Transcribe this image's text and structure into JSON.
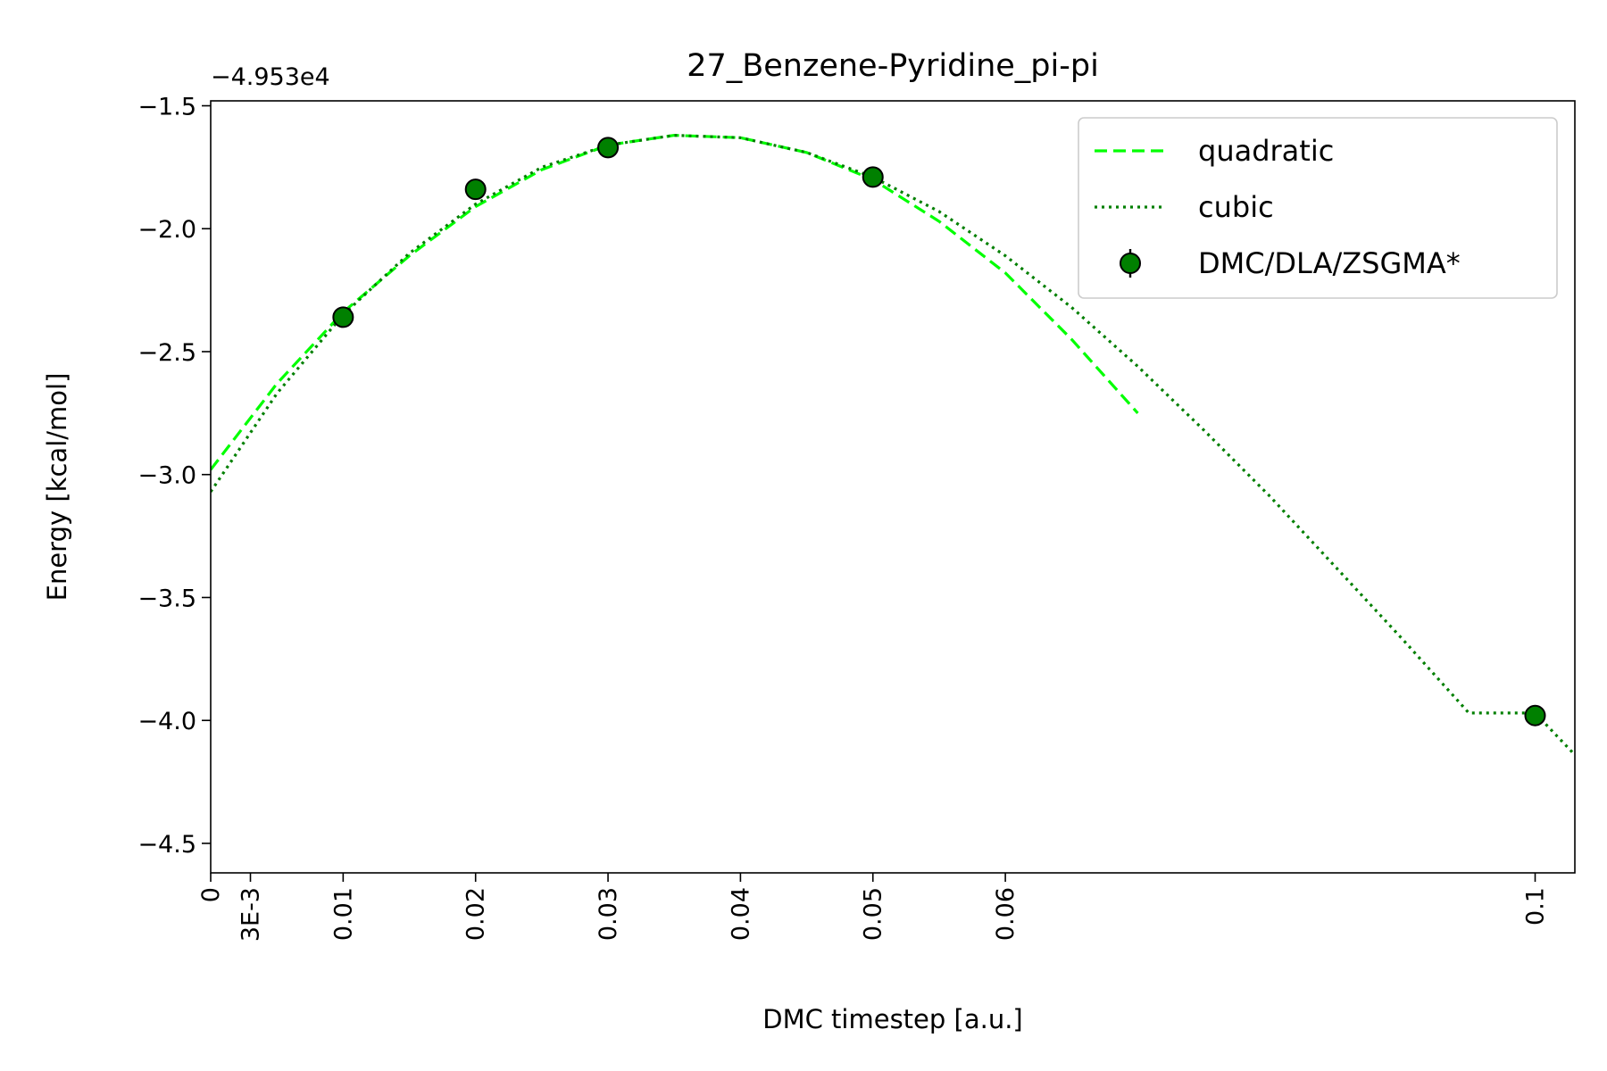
{
  "chart_data": {
    "type": "line",
    "title": "27_Benzene-Pyridine_pi-pi",
    "xlabel": "DMC timestep [a.u.]",
    "ylabel": "Energy [kcal/mol]",
    "offset_text": "−4.953e4",
    "xlim": [
      0,
      0.103
    ],
    "ylim": [
      -4.62,
      -1.48
    ],
    "x_ticks": [
      {
        "value": 0,
        "label": "0"
      },
      {
        "value": 0.003,
        "label": "3E-3"
      },
      {
        "value": 0.01,
        "label": "0.01"
      },
      {
        "value": 0.02,
        "label": "0.02"
      },
      {
        "value": 0.03,
        "label": "0.03"
      },
      {
        "value": 0.04,
        "label": "0.04"
      },
      {
        "value": 0.05,
        "label": "0.05"
      },
      {
        "value": 0.06,
        "label": "0.06"
      },
      {
        "value": 0.1,
        "label": "0.1"
      }
    ],
    "y_ticks": [
      {
        "value": -1.5,
        "label": "−1.5"
      },
      {
        "value": -2.0,
        "label": "−2.0"
      },
      {
        "value": -2.5,
        "label": "−2.5"
      },
      {
        "value": -3.0,
        "label": "−3.0"
      },
      {
        "value": -3.5,
        "label": "−3.5"
      },
      {
        "value": -4.0,
        "label": "−4.0"
      },
      {
        "value": -4.5,
        "label": "−4.5"
      }
    ],
    "grid": false,
    "legend": "top-right",
    "series": [
      {
        "name": "quadratic",
        "style": "dashed",
        "color": "#00ff00",
        "x": [
          0,
          0.005,
          0.01,
          0.015,
          0.02,
          0.025,
          0.03,
          0.035,
          0.04,
          0.045,
          0.05,
          0.055,
          0.06,
          0.065,
          0.07
        ],
        "y": [
          -2.98,
          -2.63,
          -2.34,
          -2.11,
          -1.91,
          -1.76,
          -1.66,
          -1.62,
          -1.63,
          -1.69,
          -1.8,
          -1.97,
          -2.18,
          -2.45,
          -2.75
        ]
      },
      {
        "name": "cubic",
        "style": "dotted",
        "color": "#007f00",
        "x": [
          0,
          0.005,
          0.01,
          0.015,
          0.02,
          0.025,
          0.03,
          0.035,
          0.04,
          0.045,
          0.05,
          0.055,
          0.06,
          0.065,
          0.07,
          0.075,
          0.08,
          0.085,
          0.09,
          0.095,
          0.1,
          0.103
        ],
        "y": [
          -3.07,
          -2.67,
          -2.35,
          -2.1,
          -1.9,
          -1.75,
          -1.66,
          -1.62,
          -1.63,
          -1.69,
          -1.79,
          -1.93,
          -2.11,
          -2.32,
          -2.56,
          -2.82,
          -3.09,
          -3.38,
          -3.67,
          -3.97,
          -3.97,
          -4.14
        ]
      },
      {
        "name": "DMC/DLA/ZSGMA*",
        "style": "markers-errorbar",
        "color": "#008000",
        "x": [
          0.01,
          0.02,
          0.03,
          0.05,
          0.1
        ],
        "y": [
          -2.36,
          -1.84,
          -1.67,
          -1.79,
          -3.98
        ],
        "err": [
          0.02,
          0.03,
          0.015,
          0.02,
          0.02
        ]
      }
    ]
  }
}
